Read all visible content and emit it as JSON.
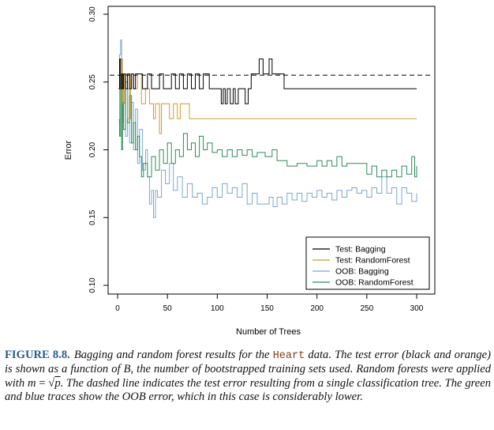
{
  "chart_data": {
    "type": "line",
    "title": "",
    "xlabel": "Number of Trees",
    "ylabel": "Error",
    "xlim": [
      0,
      300
    ],
    "ylim": [
      0.1,
      0.3
    ],
    "x_ticks": [
      0,
      50,
      100,
      150,
      200,
      250,
      300
    ],
    "y_ticks": [
      "0.10",
      "0.15",
      "0.20",
      "0.25",
      "0.30"
    ],
    "grid": false,
    "legend_position": "bottom-right",
    "reference_line": {
      "y": 0.255,
      "style": "dashed",
      "color": "#000000"
    },
    "series": [
      {
        "name": "Test: Bagging",
        "color": "#000000",
        "points": [
          [
            1,
            0.245
          ],
          [
            2,
            0.267
          ],
          [
            3,
            0.245
          ],
          [
            4,
            0.256
          ],
          [
            5,
            0.245
          ],
          [
            6,
            0.256
          ],
          [
            8,
            0.245
          ],
          [
            10,
            0.256
          ],
          [
            12,
            0.245
          ],
          [
            14,
            0.256
          ],
          [
            16,
            0.245
          ],
          [
            18,
            0.256
          ],
          [
            22,
            0.256
          ],
          [
            25,
            0.245
          ],
          [
            28,
            0.245
          ],
          [
            30,
            0.256
          ],
          [
            34,
            0.245
          ],
          [
            38,
            0.245
          ],
          [
            42,
            0.256
          ],
          [
            46,
            0.245
          ],
          [
            50,
            0.245
          ],
          [
            54,
            0.256
          ],
          [
            58,
            0.245
          ],
          [
            62,
            0.256
          ],
          [
            66,
            0.245
          ],
          [
            70,
            0.256
          ],
          [
            74,
            0.245
          ],
          [
            78,
            0.256
          ],
          [
            82,
            0.245
          ],
          [
            86,
            0.256
          ],
          [
            92,
            0.245
          ],
          [
            100,
            0.245
          ],
          [
            104,
            0.234
          ],
          [
            106,
            0.245
          ],
          [
            108,
            0.234
          ],
          [
            110,
            0.245
          ],
          [
            113,
            0.234
          ],
          [
            116,
            0.245
          ],
          [
            118,
            0.234
          ],
          [
            121,
            0.245
          ],
          [
            124,
            0.245
          ],
          [
            128,
            0.234
          ],
          [
            131,
            0.245
          ],
          [
            134,
            0.256
          ],
          [
            140,
            0.256
          ],
          [
            142,
            0.267
          ],
          [
            146,
            0.256
          ],
          [
            150,
            0.256
          ],
          [
            152,
            0.267
          ],
          [
            155,
            0.256
          ],
          [
            165,
            0.256
          ],
          [
            167,
            0.245
          ],
          [
            300,
            0.245
          ]
        ]
      },
      {
        "name": "Test: RandomForest",
        "color": "#d09a2c",
        "points": [
          [
            1,
            0.245
          ],
          [
            3,
            0.267
          ],
          [
            5,
            0.234
          ],
          [
            7,
            0.256
          ],
          [
            10,
            0.223
          ],
          [
            13,
            0.256
          ],
          [
            16,
            0.245
          ],
          [
            20,
            0.256
          ],
          [
            24,
            0.234
          ],
          [
            28,
            0.245
          ],
          [
            32,
            0.234
          ],
          [
            36,
            0.223
          ],
          [
            38,
            0.234
          ],
          [
            42,
            0.212
          ],
          [
            44,
            0.234
          ],
          [
            48,
            0.234
          ],
          [
            52,
            0.223
          ],
          [
            56,
            0.234
          ],
          [
            60,
            0.223
          ],
          [
            63,
            0.234
          ],
          [
            70,
            0.234
          ],
          [
            72,
            0.223
          ],
          [
            300,
            0.223
          ]
        ]
      },
      {
        "name": "OOB: Bagging",
        "color": "#7ba7d0",
        "points": [
          [
            1,
            0.22
          ],
          [
            2,
            0.27
          ],
          [
            3,
            0.281
          ],
          [
            4,
            0.245
          ],
          [
            5,
            0.22
          ],
          [
            6,
            0.256
          ],
          [
            8,
            0.21
          ],
          [
            10,
            0.245
          ],
          [
            12,
            0.205
          ],
          [
            14,
            0.235
          ],
          [
            16,
            0.2
          ],
          [
            18,
            0.23
          ],
          [
            20,
            0.19
          ],
          [
            22,
            0.215
          ],
          [
            25,
            0.185
          ],
          [
            28,
            0.2
          ],
          [
            30,
            0.18
          ],
          [
            32,
            0.16
          ],
          [
            34,
            0.17
          ],
          [
            36,
            0.15
          ],
          [
            38,
            0.17
          ],
          [
            40,
            0.165
          ],
          [
            44,
            0.185
          ],
          [
            48,
            0.175
          ],
          [
            52,
            0.19
          ],
          [
            56,
            0.17
          ],
          [
            60,
            0.18
          ],
          [
            65,
            0.165
          ],
          [
            70,
            0.175
          ],
          [
            75,
            0.165
          ],
          [
            80,
            0.168
          ],
          [
            85,
            0.16
          ],
          [
            90,
            0.165
          ],
          [
            95,
            0.172
          ],
          [
            100,
            0.165
          ],
          [
            105,
            0.175
          ],
          [
            110,
            0.168
          ],
          [
            115,
            0.172
          ],
          [
            120,
            0.165
          ],
          [
            125,
            0.175
          ],
          [
            130,
            0.16
          ],
          [
            135,
            0.168
          ],
          [
            140,
            0.16
          ],
          [
            148,
            0.16
          ],
          [
            152,
            0.165
          ],
          [
            156,
            0.158
          ],
          [
            160,
            0.165
          ],
          [
            165,
            0.16
          ],
          [
            170,
            0.168
          ],
          [
            175,
            0.163
          ],
          [
            180,
            0.168
          ],
          [
            185,
            0.162
          ],
          [
            190,
            0.168
          ],
          [
            195,
            0.165
          ],
          [
            200,
            0.17
          ],
          [
            205,
            0.165
          ],
          [
            210,
            0.168
          ],
          [
            215,
            0.163
          ],
          [
            220,
            0.17
          ],
          [
            225,
            0.165
          ],
          [
            230,
            0.17
          ],
          [
            235,
            0.172
          ],
          [
            240,
            0.168
          ],
          [
            245,
            0.17
          ],
          [
            250,
            0.165
          ],
          [
            255,
            0.172
          ],
          [
            260,
            0.168
          ],
          [
            265,
            0.18
          ],
          [
            270,
            0.168
          ],
          [
            275,
            0.172
          ],
          [
            280,
            0.16
          ],
          [
            285,
            0.172
          ],
          [
            290,
            0.168
          ],
          [
            295,
            0.162
          ],
          [
            300,
            0.168
          ]
        ]
      },
      {
        "name": "OOB: RandomForest",
        "color": "#2e8b57",
        "points": [
          [
            1,
            0.222
          ],
          [
            2,
            0.21
          ],
          [
            3,
            0.245
          ],
          [
            4,
            0.2
          ],
          [
            5,
            0.235
          ],
          [
            6,
            0.215
          ],
          [
            8,
            0.25
          ],
          [
            10,
            0.22
          ],
          [
            12,
            0.24
          ],
          [
            14,
            0.205
          ],
          [
            16,
            0.22
          ],
          [
            18,
            0.2
          ],
          [
            20,
            0.21
          ],
          [
            22,
            0.195
          ],
          [
            24,
            0.18
          ],
          [
            26,
            0.19
          ],
          [
            30,
            0.18
          ],
          [
            34,
            0.195
          ],
          [
            38,
            0.185
          ],
          [
            42,
            0.2
          ],
          [
            46,
            0.19
          ],
          [
            50,
            0.205
          ],
          [
            54,
            0.19
          ],
          [
            58,
            0.2
          ],
          [
            62,
            0.195
          ],
          [
            66,
            0.212
          ],
          [
            70,
            0.2
          ],
          [
            74,
            0.205
          ],
          [
            78,
            0.195
          ],
          [
            82,
            0.21
          ],
          [
            86,
            0.2
          ],
          [
            90,
            0.205
          ],
          [
            95,
            0.198
          ],
          [
            100,
            0.2
          ],
          [
            105,
            0.195
          ],
          [
            110,
            0.2
          ],
          [
            115,
            0.195
          ],
          [
            120,
            0.2
          ],
          [
            125,
            0.196
          ],
          [
            130,
            0.2
          ],
          [
            135,
            0.195
          ],
          [
            140,
            0.198
          ],
          [
            148,
            0.195
          ],
          [
            155,
            0.2
          ],
          [
            160,
            0.192
          ],
          [
            170,
            0.188
          ],
          [
            180,
            0.19
          ],
          [
            190,
            0.188
          ],
          [
            200,
            0.192
          ],
          [
            205,
            0.188
          ],
          [
            210,
            0.192
          ],
          [
            215,
            0.188
          ],
          [
            220,
            0.195
          ],
          [
            225,
            0.188
          ],
          [
            230,
            0.19
          ],
          [
            240,
            0.19
          ],
          [
            250,
            0.182
          ],
          [
            255,
            0.188
          ],
          [
            260,
            0.18
          ],
          [
            265,
            0.185
          ],
          [
            270,
            0.18
          ],
          [
            275,
            0.185
          ],
          [
            280,
            0.18
          ],
          [
            285,
            0.188
          ],
          [
            290,
            0.182
          ],
          [
            295,
            0.195
          ],
          [
            298,
            0.18
          ],
          [
            300,
            0.188
          ]
        ]
      }
    ]
  },
  "caption": {
    "figure_label": "FIGURE 8.8.",
    "text_part1": "Bagging and random forest results for the",
    "code_term": "Heart",
    "text_part2": "data. The test error (black and orange) is shown as a function of",
    "var_b": "B",
    "text_part3": ", the number of bootstrapped training sets used. Random forests were applied with",
    "formula_lhs": "m",
    "formula_eq": " = ",
    "formula_sqrt": "√",
    "formula_p": "p",
    "text_part4": ". The dashed line indicates the test error resulting from a single classification tree. The green and blue traces show the OOB error, which in this case is considerably lower."
  }
}
